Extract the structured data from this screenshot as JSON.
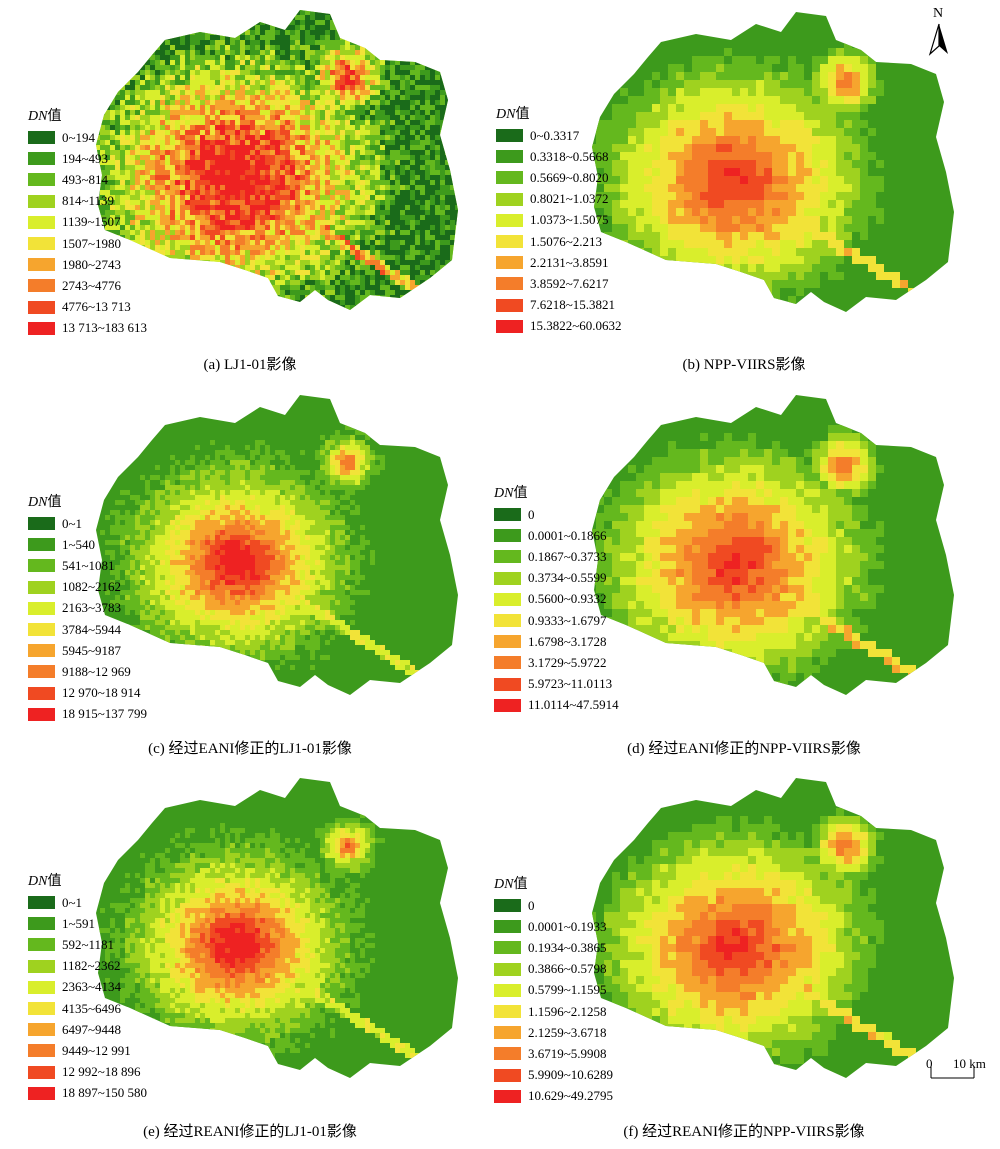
{
  "north_label": "N",
  "scale": {
    "zero": "0",
    "distance": "10 km"
  },
  "colors": [
    "#1a6b1a",
    "#3d9a1c",
    "#64b81e",
    "#9fd21f",
    "#d9ee2c",
    "#f2e338",
    "#f6a52e",
    "#f47d2a",
    "#f04a22",
    "#ee2222"
  ],
  "panels": [
    {
      "caption": "(a) LJ1-01影像",
      "legend_title": "DN",
      "legend_title_suffix": "值",
      "render_style": "speckled",
      "legend": [
        "0~194",
        "194~493",
        "493~814",
        "814~1139",
        "1139~1507",
        "1507~1980",
        "1980~2743",
        "2743~4776",
        "4776~13 713",
        "13 713~183 613"
      ]
    },
    {
      "caption": "(b) NPP-VIIRS影像",
      "legend_title": "DN",
      "legend_title_suffix": "值",
      "render_style": "smooth",
      "legend": [
        "0~0.3317",
        "0.3318~0.5668",
        "0.5669~0.8020",
        "0.8021~1.0372",
        "1.0373~1.5075",
        "1.5076~2.213",
        "2.2131~3.8591",
        "3.8592~7.6217",
        "7.6218~15.3821",
        "15.3822~60.0632"
      ]
    },
    {
      "caption": "(c) 经过EANI修正的LJ1-01影像",
      "legend_title": "DN",
      "legend_title_suffix": "值",
      "render_style": "fine",
      "legend": [
        "0~1",
        "1~540",
        "541~1081",
        "1082~2162",
        "2163~3783",
        "3784~5944",
        "5945~9187",
        "9188~12 969",
        "12 970~18 914",
        "18 915~137 799"
      ]
    },
    {
      "caption": "(d) 经过EANI修正的NPP-VIIRS影像",
      "legend_title": "DN",
      "legend_title_suffix": "值",
      "render_style": "smooth",
      "legend": [
        "0",
        "0.0001~0.1866",
        "0.1867~0.3733",
        "0.3734~0.5599",
        "0.5600~0.9332",
        "0.9333~1.6797",
        "1.6798~3.1728",
        "3.1729~5.9722",
        "5.9723~11.0113",
        "11.0114~47.5914"
      ]
    },
    {
      "caption": "(e) 经过REANI修正的LJ1-01影像",
      "legend_title": "DN",
      "legend_title_suffix": "值",
      "render_style": "fine",
      "legend": [
        "0~1",
        "1~591",
        "592~1181",
        "1182~2362",
        "2363~4134",
        "4135~6496",
        "6497~9448",
        "9449~12 991",
        "12 992~18 896",
        "18 897~150 580"
      ]
    },
    {
      "caption": "(f) 经过REANI修正的NPP-VIIRS影像",
      "legend_title": "DN",
      "legend_title_suffix": "值",
      "render_style": "smooth",
      "legend": [
        "0",
        "0.0001~0.1933",
        "0.1934~0.3865",
        "0.3866~0.5798",
        "0.5799~1.1595",
        "1.1596~2.1258",
        "2.1259~3.6718",
        "3.6719~5.9908",
        "5.9909~10.6289",
        "10.629~49.2795"
      ]
    }
  ]
}
